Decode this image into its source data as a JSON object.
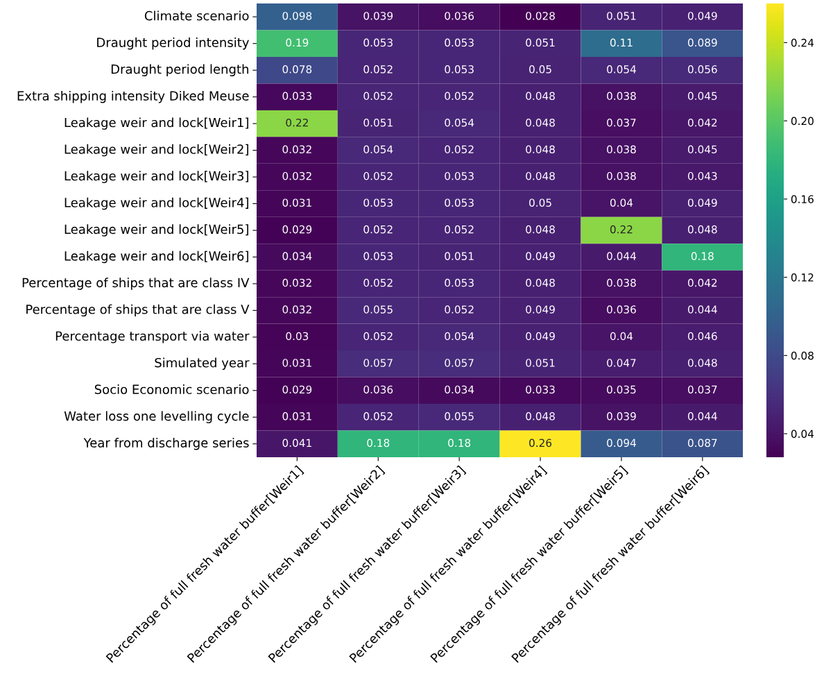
{
  "chart_data": {
    "type": "heatmap",
    "categories": [
      "Percentage of full fresh water buffer[Weir1]",
      "Percentage of full fresh water buffer[Weir2]",
      "Percentage of full fresh water buffer[Weir3]",
      "Percentage of full fresh water buffer[Weir4]",
      "Percentage of full fresh water buffer[Weir5]",
      "Percentage of full fresh water buffer[Weir6]"
    ],
    "y_categories": [
      "Climate scenario",
      "Draught period intensity",
      "Draught period length",
      "Extra shipping intensity Diked Meuse",
      "Leakage weir and lock[Weir1]",
      "Leakage weir and lock[Weir2]",
      "Leakage weir and lock[Weir3]",
      "Leakage weir and lock[Weir4]",
      "Leakage weir and lock[Weir5]",
      "Leakage weir and lock[Weir6]",
      "Percentage of ships that are class IV",
      "Percentage of ships that are class V",
      "Percentage transport via water",
      "Simulated year",
      "Socio Economic scenario",
      "Water loss one levelling cycle",
      "Year from discharge series"
    ],
    "cells": [
      [
        0.098,
        0.039,
        0.036,
        0.028,
        0.051,
        0.049
      ],
      [
        0.19,
        0.053,
        0.053,
        0.051,
        0.11,
        0.089
      ],
      [
        0.078,
        0.052,
        0.053,
        0.05,
        0.054,
        0.056
      ],
      [
        0.033,
        0.052,
        0.052,
        0.048,
        0.038,
        0.045
      ],
      [
        0.22,
        0.051,
        0.054,
        0.048,
        0.037,
        0.042
      ],
      [
        0.032,
        0.054,
        0.052,
        0.048,
        0.038,
        0.045
      ],
      [
        0.032,
        0.052,
        0.053,
        0.048,
        0.038,
        0.043
      ],
      [
        0.031,
        0.053,
        0.053,
        0.05,
        0.04,
        0.049
      ],
      [
        0.029,
        0.052,
        0.052,
        0.048,
        0.22,
        0.048
      ],
      [
        0.034,
        0.053,
        0.051,
        0.049,
        0.044,
        0.18
      ],
      [
        0.032,
        0.052,
        0.053,
        0.048,
        0.038,
        0.042
      ],
      [
        0.032,
        0.055,
        0.052,
        0.049,
        0.036,
        0.044
      ],
      [
        0.03,
        0.052,
        0.054,
        0.049,
        0.04,
        0.046
      ],
      [
        0.031,
        0.057,
        0.057,
        0.051,
        0.047,
        0.048
      ],
      [
        0.029,
        0.036,
        0.034,
        0.033,
        0.035,
        0.037
      ],
      [
        0.031,
        0.052,
        0.055,
        0.048,
        0.039,
        0.044
      ],
      [
        0.041,
        0.18,
        0.18,
        0.26,
        0.094,
        0.087
      ]
    ],
    "clim": [
      0.028,
      0.26
    ],
    "cticks": [
      0.04,
      0.08,
      0.12,
      0.16,
      {
        "value": 0.2,
        "label": "0.20"
      },
      0.24
    ],
    "data_labels": true
  }
}
